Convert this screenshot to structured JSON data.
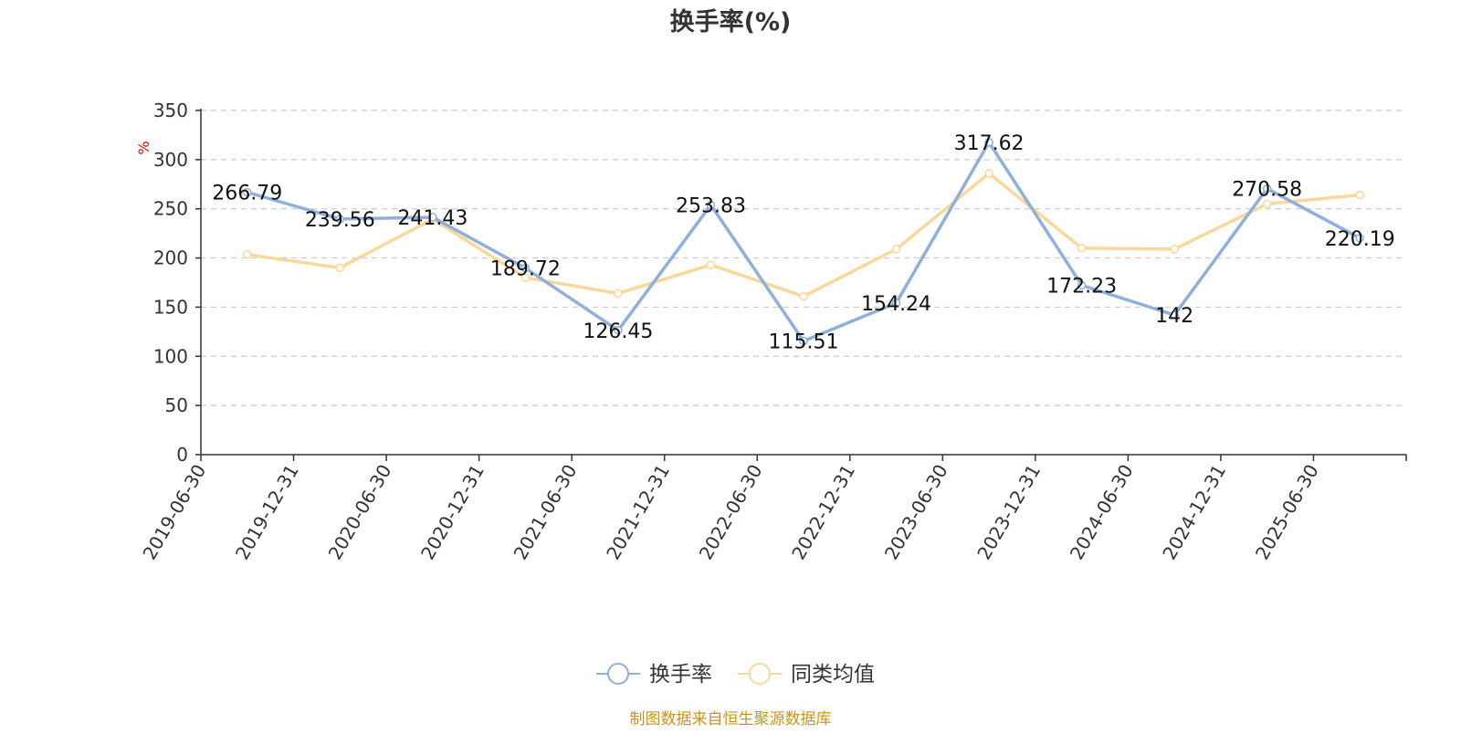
{
  "chart_data": {
    "type": "line",
    "title": "换手率(%)",
    "ylabel": "%",
    "xlabel": "",
    "ylim": [
      0,
      350
    ],
    "yticks": [
      0,
      50,
      100,
      150,
      200,
      250,
      300,
      350
    ],
    "grid": true,
    "legend_position": "bottom-center",
    "categories": [
      "2019-06-30",
      "2019-12-31",
      "2020-06-30",
      "2020-12-31",
      "2021-06-30",
      "2021-12-31",
      "2022-06-30",
      "2022-12-31",
      "2023-06-30",
      "2023-12-31",
      "2024-06-30",
      "2024-12-31",
      "2025-06-30"
    ],
    "series": [
      {
        "name": "换手率",
        "color": "#8eb0da",
        "values": [
          266.79,
          239.56,
          241.43,
          189.72,
          126.45,
          253.83,
          115.51,
          154.24,
          317.62,
          172.23,
          142,
          270.58,
          220.19
        ],
        "labels": [
          "266.79",
          "239.56",
          "241.43",
          "189.72",
          "126.45",
          "253.83",
          "115.51",
          "154.24",
          "317.62",
          "172.23",
          "142",
          "270.58",
          "220.19"
        ]
      },
      {
        "name": "同类均值",
        "color": "#f9d89a",
        "values": [
          203.5,
          190,
          239.5,
          180,
          164,
          193,
          161,
          209,
          286,
          210,
          209,
          255,
          264
        ]
      }
    ]
  },
  "footer": {
    "source": "制图数据来自恒生聚源数据库",
    "source_color": "#c8941e"
  }
}
